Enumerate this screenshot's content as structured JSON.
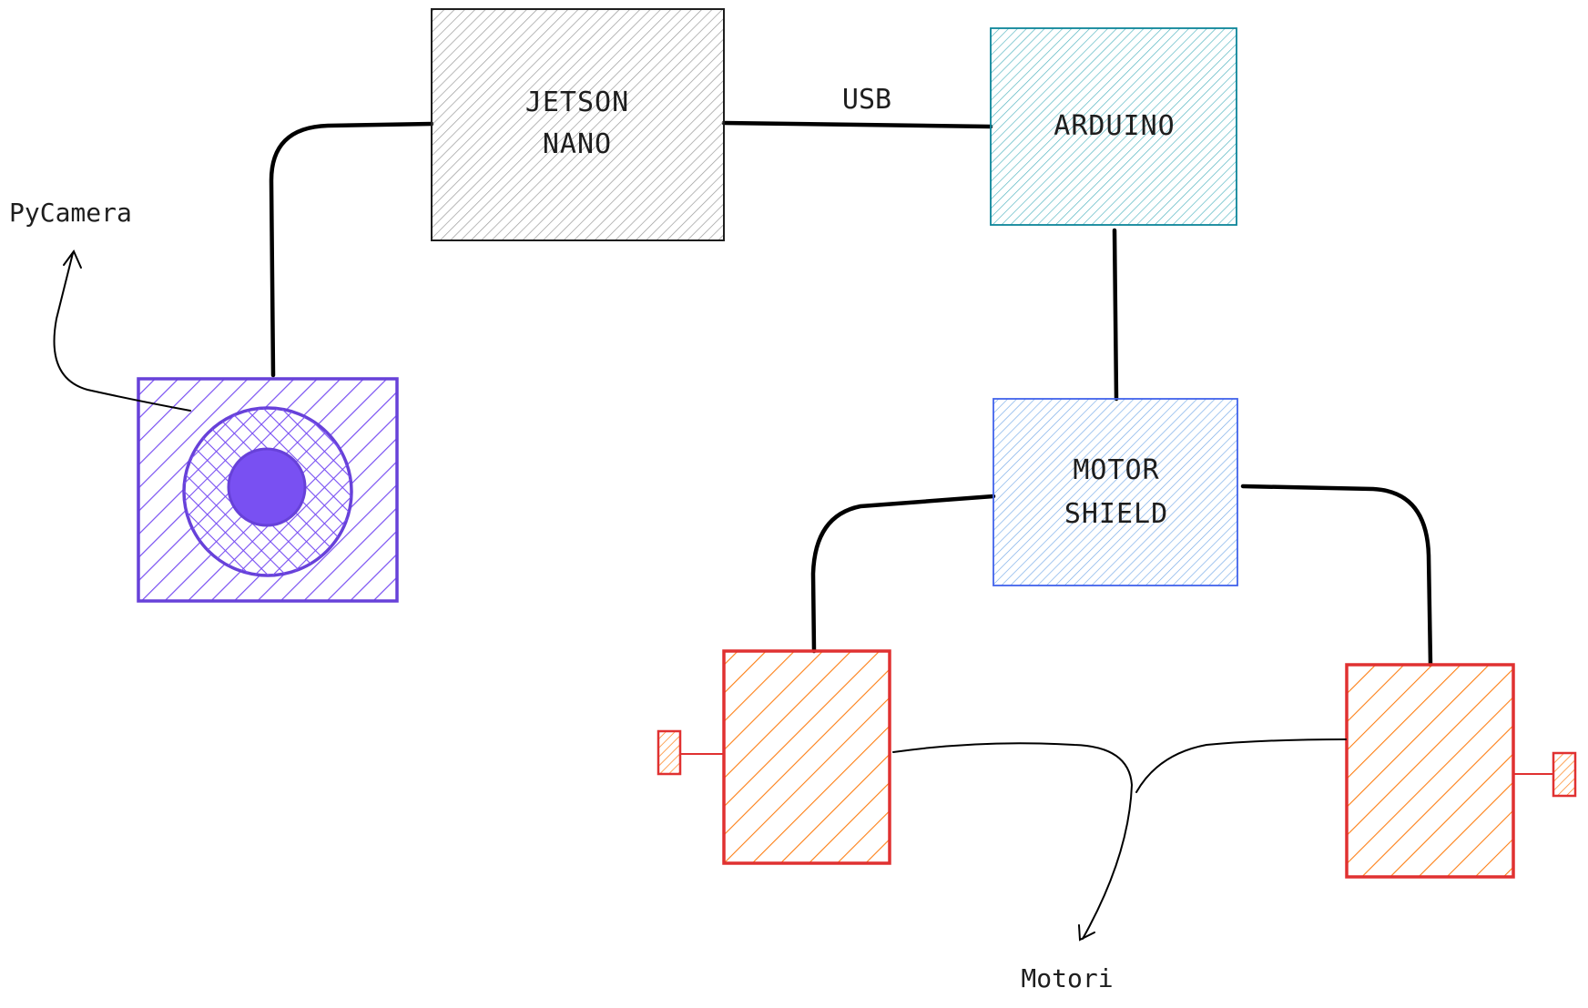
{
  "diagram": {
    "nodes": {
      "jetson": {
        "line1": "JETSON",
        "line2": "NANO"
      },
      "arduino": {
        "label": "ARDUINO"
      },
      "motor_shield": {
        "line1": "MOTOR",
        "line2": "SHIELD"
      }
    },
    "edges": {
      "jetson_arduino": {
        "label": "USB"
      }
    },
    "annotations": {
      "camera": "PyCamera",
      "motors": "Motori"
    },
    "colors": {
      "jetson_fill": "#c4c4c4",
      "jetson_stroke": "#1e1e1e",
      "arduino_fill": "#4fb3bf",
      "arduino_stroke": "#0c8599",
      "shield_fill": "#74a9e8",
      "shield_stroke": "#4263eb",
      "camera_stroke": "#6741d9",
      "camera_lens": "#7950f2",
      "motor_fill": "#fd7e14",
      "motor_stroke": "#e03131",
      "wire": "#000000"
    }
  }
}
